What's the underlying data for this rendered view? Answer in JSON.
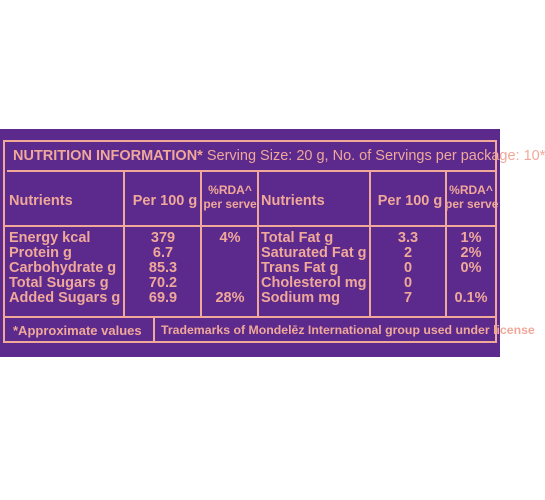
{
  "title": {
    "heading": "NUTRITION INFORMATION*",
    "serving": " Serving Size: 20 g, No. of Servings per package: 10*"
  },
  "headers": {
    "nutrients": "Nutrients",
    "per100": "Per 100 g",
    "rda_line1": "%RDA^",
    "rda_line2": "per serve"
  },
  "left_rows": [
    {
      "name": "Energy kcal",
      "per100": "379",
      "rda": "4%"
    },
    {
      "name": "Protein g",
      "per100": "6.7",
      "rda": ""
    },
    {
      "name": "Carbohydrate g",
      "per100": "85.3",
      "rda": ""
    },
    {
      "name": "Total Sugars g",
      "per100": "70.2",
      "rda": ""
    },
    {
      "name": "Added Sugars g",
      "per100": "69.9",
      "rda": "28%"
    }
  ],
  "right_rows": [
    {
      "name": "Total Fat g",
      "per100": "3.3",
      "rda": "1%"
    },
    {
      "name": "Saturated Fat g",
      "per100": "2",
      "rda": "2%"
    },
    {
      "name": "Trans Fat g",
      "per100": "0",
      "rda": "0%"
    },
    {
      "name": "Cholesterol mg",
      "per100": "0",
      "rda": ""
    },
    {
      "name": "Sodium mg",
      "per100": "7",
      "rda": "0.1%"
    }
  ],
  "footer": {
    "note": "*Approximate values",
    "trademark": "Trademarks of Mondelēz International group used under license"
  },
  "colors": {
    "background": "#5b2a8c",
    "text": "#f0a89a"
  }
}
